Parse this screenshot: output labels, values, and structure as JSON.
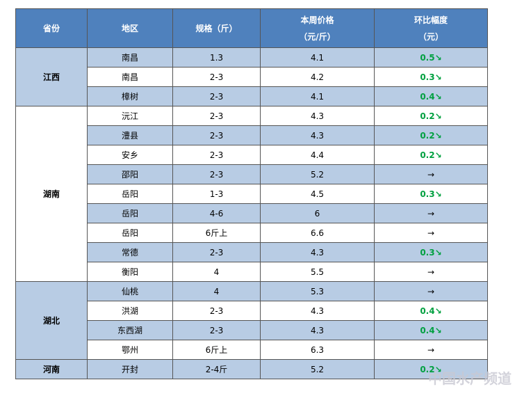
{
  "table": {
    "header": [
      [
        "省份"
      ],
      [
        "地区"
      ],
      [
        "规格（斤）"
      ],
      [
        "本周价格",
        "（元/斤）"
      ],
      [
        "环比幅度",
        "（元）"
      ]
    ],
    "groups": [
      {
        "province": "江西",
        "rows": [
          {
            "region": "南昌",
            "spec": "1.3",
            "price": "4.1",
            "change": "0.5",
            "trend": "↘"
          },
          {
            "region": "南昌",
            "spec": "2-3",
            "price": "4.2",
            "change": "0.3",
            "trend": "↘"
          },
          {
            "region": "樟树",
            "spec": "2-3",
            "price": "4.1",
            "change": "0.4",
            "trend": "↘"
          }
        ]
      },
      {
        "province": "湖南",
        "rows": [
          {
            "region": "沅江",
            "spec": "2-3",
            "price": "4.3",
            "change": "0.2",
            "trend": "↘"
          },
          {
            "region": "澧县",
            "spec": "2-3",
            "price": "4.3",
            "change": "0.2",
            "trend": "↘"
          },
          {
            "region": "安乡",
            "spec": "2-3",
            "price": "4.4",
            "change": "0.2",
            "trend": "↘"
          },
          {
            "region": "邵阳",
            "spec": "2-3",
            "price": "5.2",
            "change": null,
            "trend": "→"
          },
          {
            "region": "岳阳",
            "spec": "1-3",
            "price": "4.5",
            "change": "0.3",
            "trend": "↘"
          },
          {
            "region": "岳阳",
            "spec": "4-6",
            "price": "6",
            "change": null,
            "trend": "→"
          },
          {
            "region": "岳阳",
            "spec": "6斤上",
            "price": "6.6",
            "change": null,
            "trend": "→"
          },
          {
            "region": "常德",
            "spec": "2-3",
            "price": "4.3",
            "change": "0.3",
            "trend": "↘"
          },
          {
            "region": "衡阳",
            "spec": "4",
            "price": "5.5",
            "change": null,
            "trend": "→"
          }
        ]
      },
      {
        "province": "湖北",
        "rows": [
          {
            "region": "仙桃",
            "spec": "4",
            "price": "5.3",
            "change": null,
            "trend": "→"
          },
          {
            "region": "洪湖",
            "spec": "2-3",
            "price": "4.3",
            "change": "0.4",
            "trend": "↘"
          },
          {
            "region": "东西湖",
            "spec": "2-3",
            "price": "4.3",
            "change": "0.4",
            "trend": "↘"
          },
          {
            "region": "鄂州",
            "spec": "6斤上",
            "price": "6.3",
            "change": null,
            "trend": "→"
          }
        ]
      },
      {
        "province": "河南",
        "rows": [
          {
            "region": "开封",
            "spec": "2-4斤",
            "price": "5.2",
            "change": "0.2",
            "trend": "↘"
          }
        ]
      }
    ]
  },
  "watermark": "中国水产频道"
}
